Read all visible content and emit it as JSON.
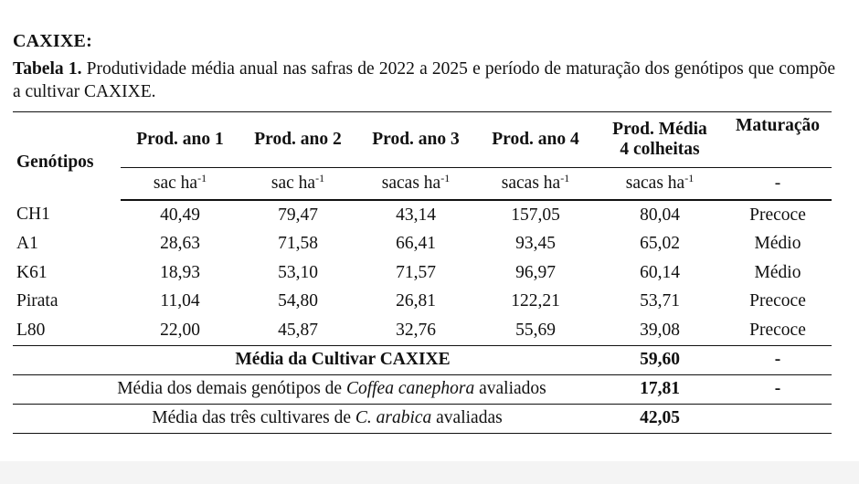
{
  "heading": "CAXIXE:",
  "caption": {
    "label": "Tabela 1.",
    "text": " Produtividade média anual nas safras de 2022 a 2025 e período de maturação dos genótipos que compõe a cultivar CAXIXE."
  },
  "table": {
    "headers": [
      "Genótipos",
      "Prod. ano 1",
      "Prod. ano 2",
      "Prod. ano 3",
      "Prod. ano 4",
      "Prod. Média 4 colheitas",
      "Maturação"
    ],
    "header_media_line1": "Prod. Média",
    "header_media_line2": "4 colheitas",
    "units": {
      "u1_base": "sac ha",
      "u1_sup": "-1",
      "u2_base": "sac ha",
      "u2_sup": "-1",
      "u3_base": "sacas ha",
      "u3_sup": "-1",
      "u4_base": "sacas ha",
      "u4_sup": "-1",
      "u5_base": "sacas ha",
      "u5_sup": "-1",
      "u6": "-"
    },
    "rows": [
      {
        "genotipo": "CH1",
        "ano1": "40,49",
        "ano2": "79,47",
        "ano3": "43,14",
        "ano4": "157,05",
        "media": "80,04",
        "maturacao": "Precoce"
      },
      {
        "genotipo": "A1",
        "ano1": "28,63",
        "ano2": "71,58",
        "ano3": "66,41",
        "ano4": "93,45",
        "media": "65,02",
        "maturacao": "Médio"
      },
      {
        "genotipo": "K61",
        "ano1": "18,93",
        "ano2": "53,10",
        "ano3": "71,57",
        "ano4": "96,97",
        "media": "60,14",
        "maturacao": "Médio"
      },
      {
        "genotipo": "Pirata",
        "ano1": "11,04",
        "ano2": "54,80",
        "ano3": "26,81",
        "ano4": "122,21",
        "media": "53,71",
        "maturacao": "Precoce"
      },
      {
        "genotipo": "L80",
        "ano1": "22,00",
        "ano2": "45,87",
        "ano3": "32,76",
        "ano4": "55,69",
        "media": "39,08",
        "maturacao": "Precoce"
      }
    ],
    "summary": [
      {
        "label": "Média da Cultivar CAXIXE",
        "value": "59,60",
        "maturacao": "-"
      },
      {
        "label_pre": "Média dos demais genótipos de ",
        "label_em": "Coffea canephora",
        "label_post": " avaliados",
        "value": "17,81",
        "maturacao": "-"
      },
      {
        "label_pre": "Média das três cultivares de ",
        "label_em": "C. arabica",
        "label_post": " avaliadas",
        "value": "42,05",
        "maturacao": ""
      }
    ]
  }
}
